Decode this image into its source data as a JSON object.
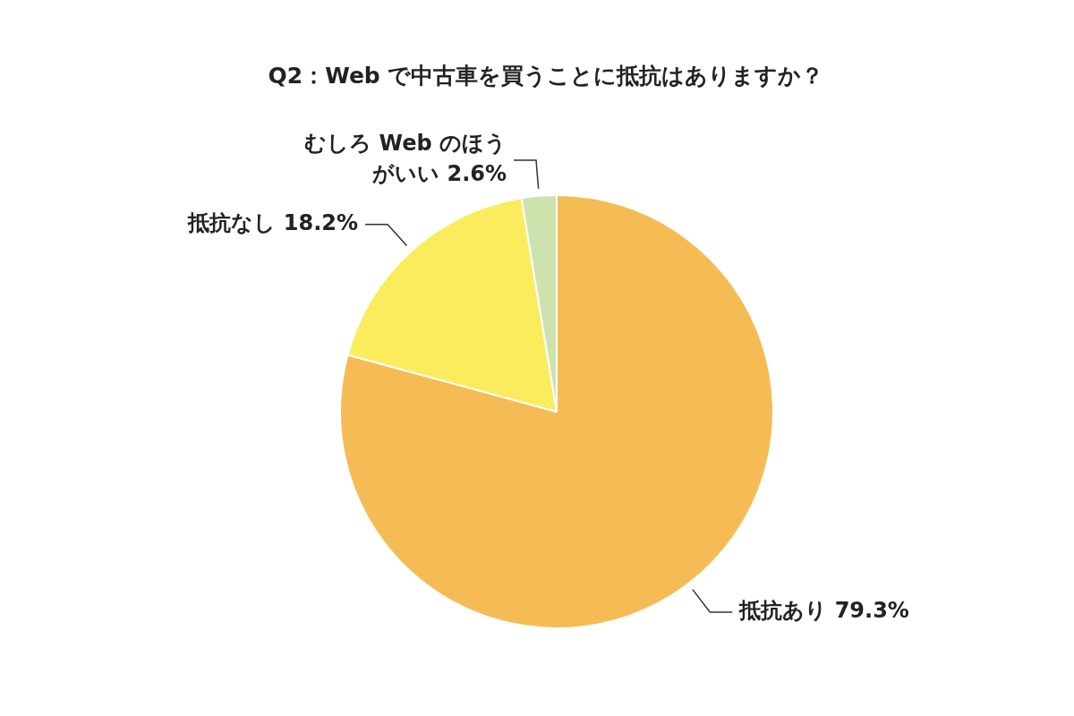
{
  "chart_data": {
    "type": "pie",
    "title": "Q2：Web で中古車を買うことに抵抗はありますか？",
    "categories": [
      "抵抗あり",
      "抵抗なし",
      "むしろ Web のほうがいい"
    ],
    "values": [
      79.3,
      18.2,
      2.6
    ],
    "value_labels": [
      "79.3%",
      "18.2%",
      "2.6%"
    ],
    "colors": [
      "#f5bc55",
      "#fbec5e",
      "#cde3ae"
    ],
    "legend": false
  }
}
